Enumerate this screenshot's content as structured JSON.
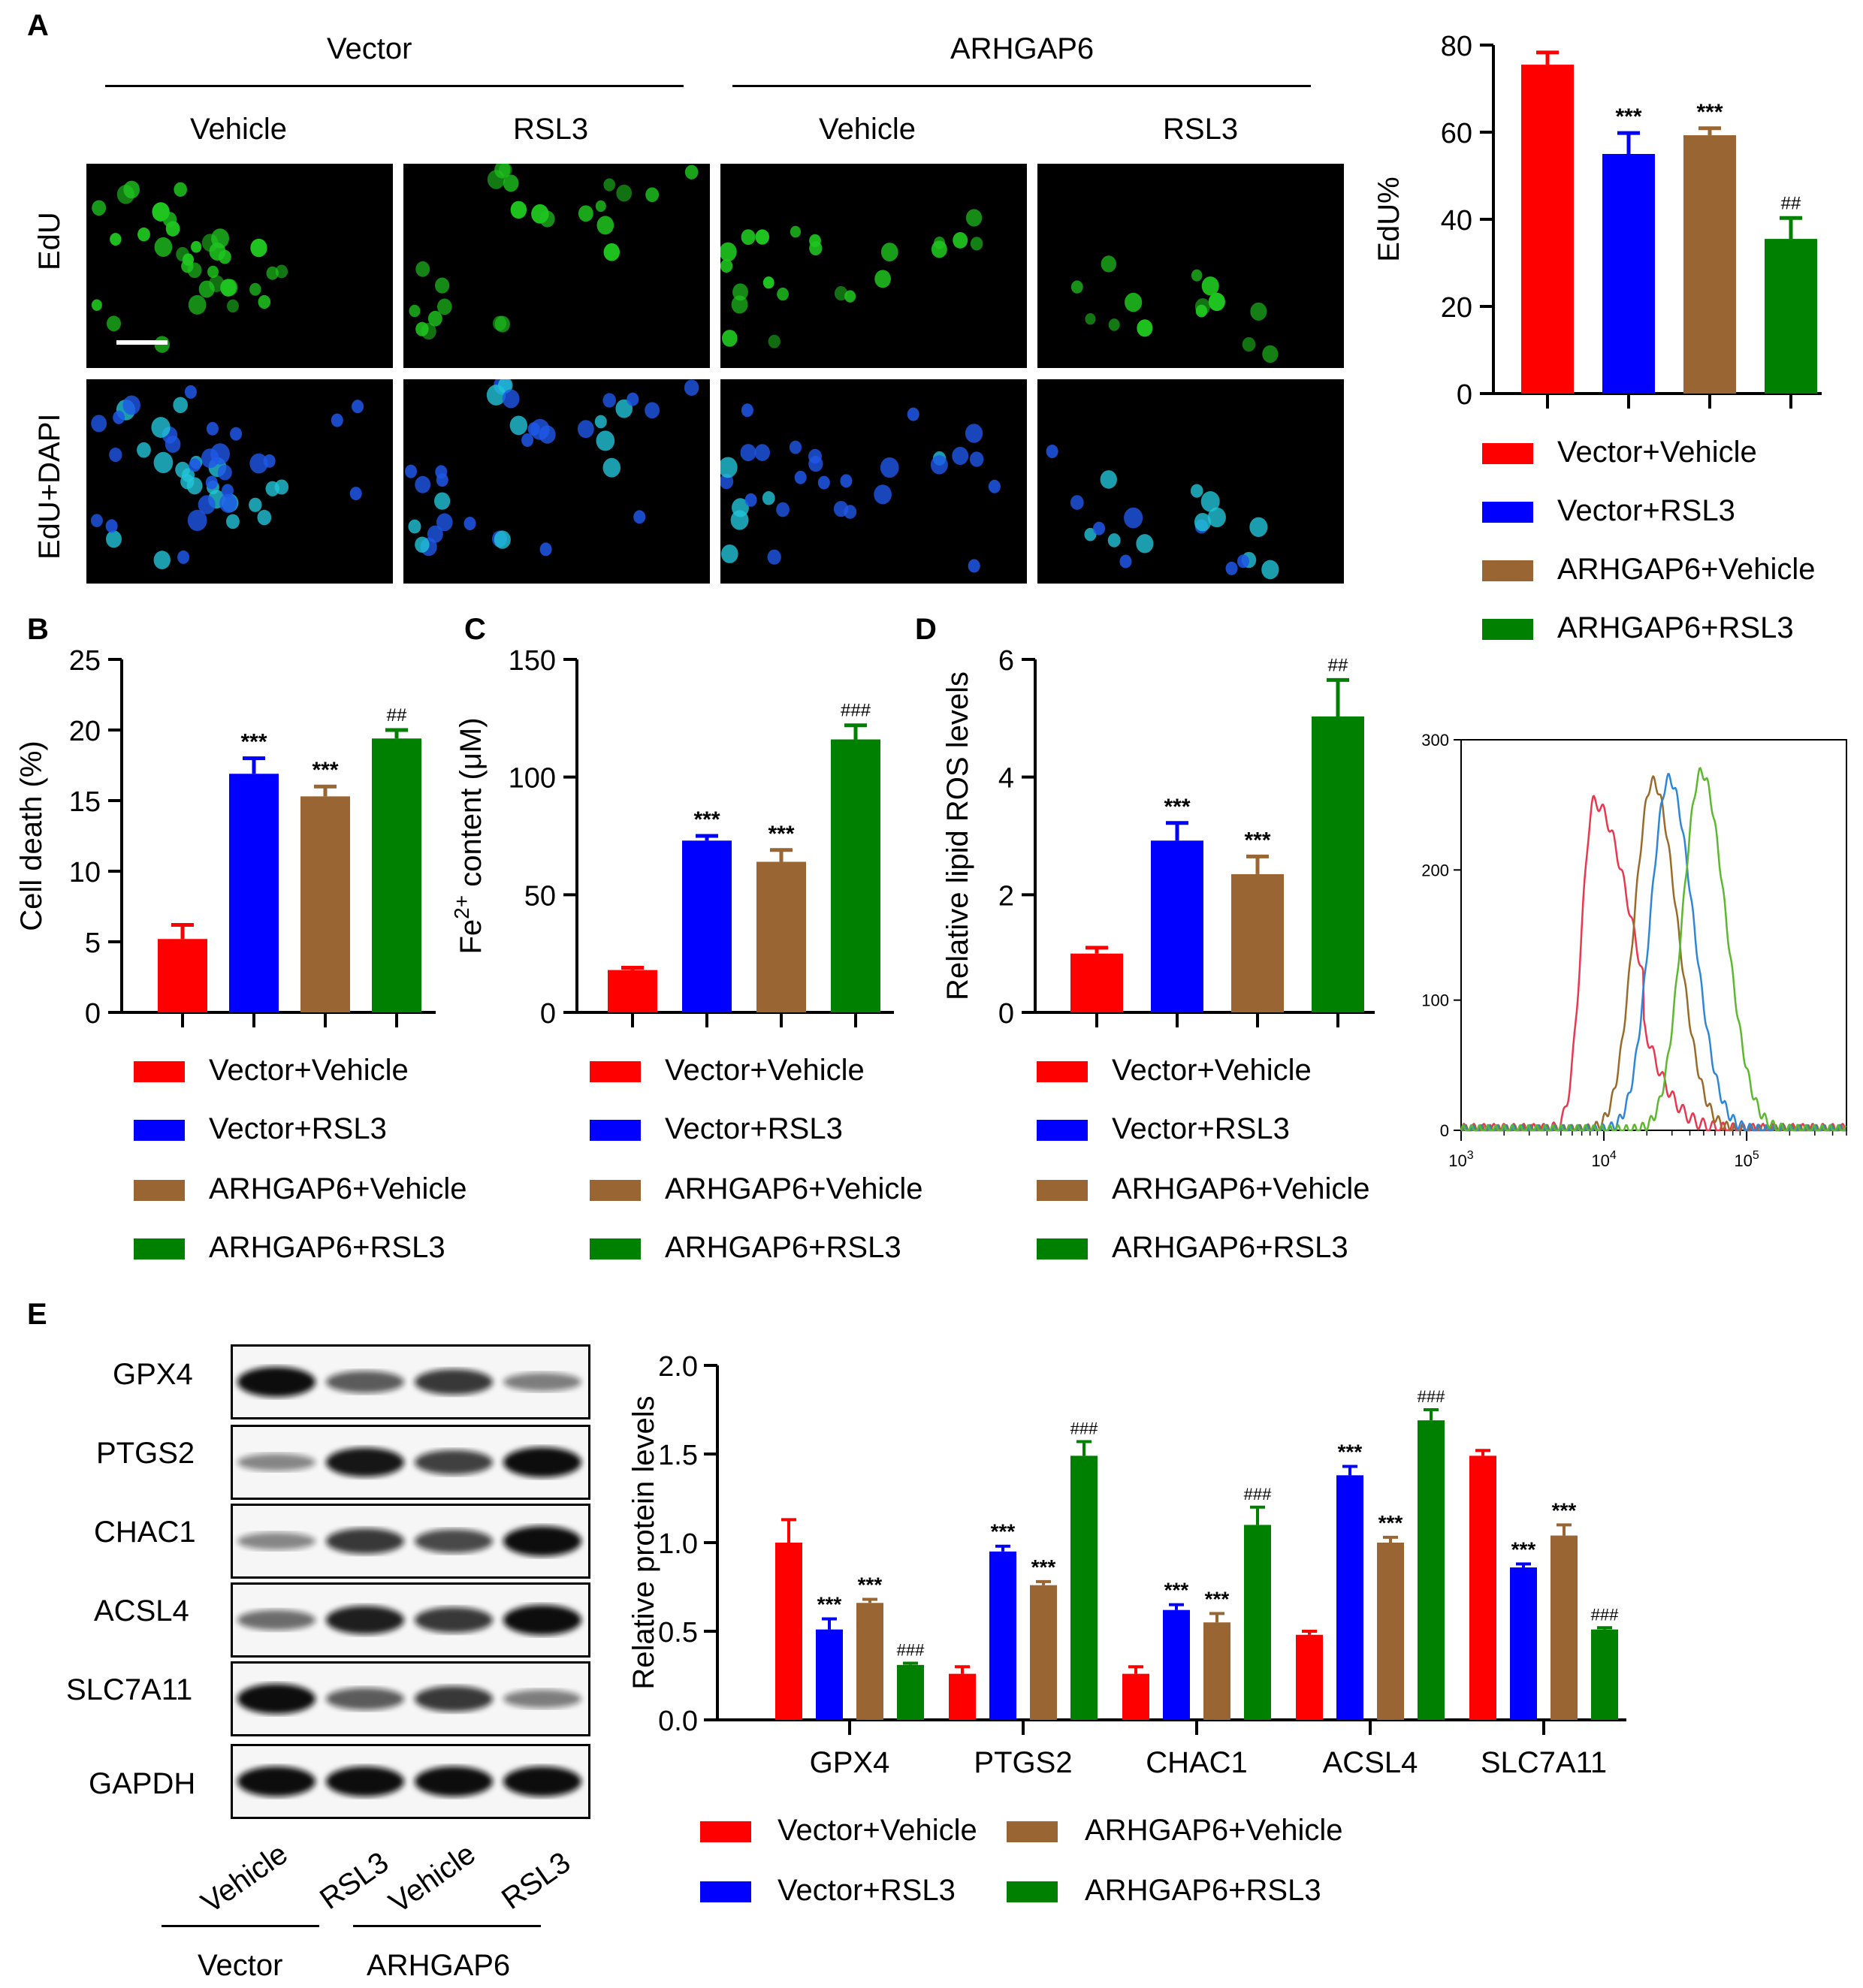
{
  "panelA": {
    "letter": "A",
    "group_vector": "Vector",
    "group_arhgap6": "ARHGAP6",
    "col_labels": [
      "Vehicle",
      "RSL3",
      "Vehicle",
      "RSL3"
    ],
    "row_labels": [
      "EdU",
      "EdU+DAPI"
    ],
    "colors": {
      "edu": "#1fc51f",
      "dapi_cyan": "#22c4d8",
      "dapi_blue": "#1f57e8"
    }
  },
  "panelB": {
    "letter": "B"
  },
  "panelC": {
    "letter": "C"
  },
  "panelD": {
    "letter": "D"
  },
  "panelE": {
    "letter": "E",
    "blot_labels": [
      "GPX4",
      "PTGS2",
      "CHAC1",
      "ACSL4",
      "SLC7A11",
      "GAPDH"
    ],
    "lane_labels": [
      "Vehicle",
      "RSL3",
      "Vehicle",
      "RSL3"
    ],
    "group_vector": "Vector",
    "group_arhgap6": "ARHGAP6",
    "blot_intensity": [
      [
        1.0,
        0.55,
        0.75,
        0.35
      ],
      [
        0.3,
        0.95,
        0.7,
        1.0
      ],
      [
        0.3,
        0.75,
        0.65,
        1.0
      ],
      [
        0.45,
        0.9,
        0.75,
        1.0
      ],
      [
        1.0,
        0.55,
        0.75,
        0.35
      ],
      [
        1.0,
        1.0,
        1.0,
        1.0
      ]
    ]
  },
  "legend": {
    "entries": [
      "Vector+Vehicle",
      "Vector+RSL3",
      "ARHGAP6+Vehicle",
      "ARHGAP6+RSL3"
    ],
    "colors": [
      "#ff0000",
      "#0000ff",
      "#996633",
      "#008000"
    ]
  },
  "chart_data": [
    {
      "id": "edu",
      "type": "bar",
      "categories": [
        "Vector+Vehicle",
        "Vector+RSL3",
        "ARHGAP6+Vehicle",
        "ARHGAP6+RSL3"
      ],
      "values": [
        75.5,
        55,
        59.3,
        35.5
      ],
      "errors": [
        2.8,
        4.8,
        1.6,
        4.8
      ],
      "annotations": [
        "",
        "***",
        "***",
        "##"
      ],
      "ylabel": "EdU%",
      "ylim": [
        0,
        80
      ],
      "yticks": [
        0,
        20,
        40,
        60,
        80
      ],
      "ytick_labels": [
        "0",
        "20",
        "40",
        "60",
        "80"
      ]
    },
    {
      "id": "cell_death",
      "type": "bar",
      "categories": [
        "Vector+Vehicle",
        "Vector+RSL3",
        "ARHGAP6+Vehicle",
        "ARHGAP6+RSL3"
      ],
      "values": [
        5.2,
        16.9,
        15.3,
        19.4
      ],
      "errors": [
        1.0,
        1.1,
        0.7,
        0.6
      ],
      "annotations": [
        "",
        "***",
        "***",
        "##"
      ],
      "ylabel": "Cell death (%)",
      "ylim": [
        0,
        25
      ],
      "yticks": [
        0,
        5,
        10,
        15,
        20,
        25
      ],
      "ytick_labels": [
        "0",
        "5",
        "10",
        "15",
        "20",
        "25"
      ]
    },
    {
      "id": "fe2",
      "type": "bar",
      "categories": [
        "Vector+Vehicle",
        "Vector+RSL3",
        "ARHGAP6+Vehicle",
        "ARHGAP6+RSL3"
      ],
      "values": [
        18,
        73,
        64,
        116
      ],
      "errors": [
        1,
        2,
        5,
        6
      ],
      "annotations": [
        "",
        "***",
        "***",
        "###"
      ],
      "ylabel_pre": "Fe",
      "ylabel_sup": "2+",
      "ylabel_post": " content (μM)",
      "ylim": [
        0,
        150
      ],
      "yticks": [
        0,
        50,
        100,
        150
      ],
      "ytick_labels": [
        "0",
        "50",
        "100",
        "150"
      ]
    },
    {
      "id": "lipid_ros",
      "type": "bar",
      "categories": [
        "Vector+Vehicle",
        "Vector+RSL3",
        "ARHGAP6+Vehicle",
        "ARHGAP6+RSL3"
      ],
      "values": [
        1.0,
        2.92,
        2.35,
        5.03
      ],
      "errors": [
        0.1,
        0.3,
        0.3,
        0.62
      ],
      "annotations": [
        "",
        "***",
        "***",
        "##"
      ],
      "ylabel": "Relative lipid ROS levels",
      "ylim": [
        0,
        6
      ],
      "yticks": [
        0,
        2,
        4,
        6
      ],
      "ytick_labels": [
        "0",
        "2",
        "4",
        "6"
      ]
    },
    {
      "id": "flow_histogram",
      "type": "line",
      "xscale": "log",
      "xlim": [
        1000,
        500000
      ],
      "ylim": [
        0,
        300
      ],
      "yticks": [
        0,
        100,
        200,
        300
      ],
      "ytick_labels": [
        "0",
        "100",
        "200",
        "300"
      ],
      "xtick_labels": [
        "10",
        "10",
        "10"
      ],
      "xtick_exponents": [
        "3",
        "4",
        "5"
      ],
      "series": [
        {
          "color": "#e8384f",
          "peak_x": 8500,
          "peak_y": 252,
          "profile": "red"
        },
        {
          "color": "#9a6a2a",
          "peak_x": 22000,
          "peak_y": 268,
          "profile": "normal"
        },
        {
          "color": "#2e86d8",
          "peak_x": 28500,
          "peak_y": 270,
          "profile": "normal"
        },
        {
          "color": "#5cb82e",
          "peak_x": 48000,
          "peak_y": 275,
          "profile": "normal"
        }
      ]
    },
    {
      "id": "protein_levels",
      "type": "bar",
      "categories": [
        "GPX4",
        "PTGS2",
        "CHAC1",
        "ACSL4",
        "SLC7A11"
      ],
      "series": [
        {
          "name": "Vector+Vehicle",
          "color": "#ff0000",
          "values": [
            1.0,
            0.26,
            0.26,
            0.48,
            1.49
          ],
          "errors": [
            0.13,
            0.04,
            0.04,
            0.02,
            0.03
          ],
          "annotations": [
            "",
            "",
            "",
            "",
            ""
          ]
        },
        {
          "name": "Vector+RSL3",
          "color": "#0000ff",
          "values": [
            0.51,
            0.95,
            0.62,
            1.38,
            0.86
          ],
          "errors": [
            0.06,
            0.03,
            0.03,
            0.05,
            0.02
          ],
          "annotations": [
            "***",
            "***",
            "***",
            "***",
            "***"
          ]
        },
        {
          "name": "ARHGAP6+Vehicle",
          "color": "#996633",
          "values": [
            0.66,
            0.76,
            0.55,
            1.0,
            1.04
          ],
          "errors": [
            0.02,
            0.02,
            0.05,
            0.03,
            0.06
          ],
          "annotations": [
            "***",
            "***",
            "***",
            "***",
            "***"
          ]
        },
        {
          "name": "ARHGAP6+RSL3",
          "color": "#008000",
          "values": [
            0.31,
            1.49,
            1.1,
            1.69,
            0.51
          ],
          "errors": [
            0.01,
            0.08,
            0.1,
            0.06,
            0.01
          ],
          "annotations": [
            "###",
            "###",
            "###",
            "###",
            "###"
          ]
        }
      ],
      "ylabel": "Relative protein levels",
      "ylim": [
        0,
        2.0
      ],
      "yticks": [
        0,
        0.5,
        1.0,
        1.5,
        2.0
      ],
      "ytick_labels": [
        "0.0",
        "0.5",
        "1.0",
        "1.5",
        "2.0"
      ]
    }
  ]
}
